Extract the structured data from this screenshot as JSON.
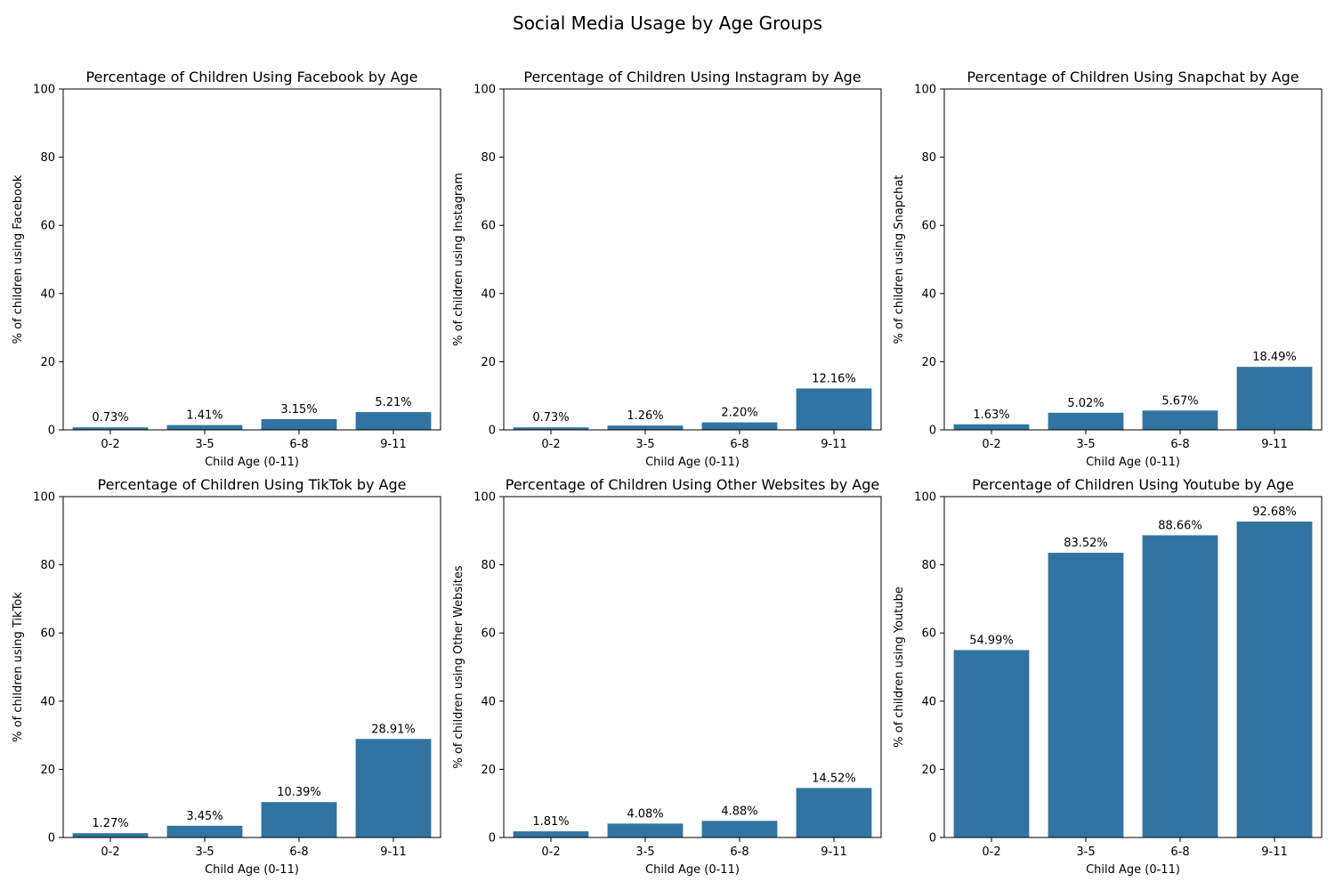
{
  "figure": {
    "title": "Social Media Usage by Age Groups"
  },
  "colors": {
    "bar": "#3274a1",
    "axis": "#000000",
    "text": "#000000",
    "background": "#ffffff"
  },
  "chart_data": [
    {
      "type": "bar",
      "title": "Percentage of Children Using Facebook by Age",
      "xlabel": "Child Age (0-11)",
      "ylabel": "% of children using Facebook",
      "categories": [
        "0-2",
        "3-5",
        "6-8",
        "9-11"
      ],
      "values": [
        0.73,
        1.41,
        3.15,
        5.21
      ],
      "data_labels": [
        "0.73%",
        "1.41%",
        "3.15%",
        "5.21%"
      ],
      "ylim": [
        0,
        100
      ],
      "yticks": [
        0,
        20,
        40,
        60,
        80,
        100
      ],
      "grid": false,
      "legend": "none"
    },
    {
      "type": "bar",
      "title": "Percentage of Children Using Instagram by Age",
      "xlabel": "Child Age (0-11)",
      "ylabel": "% of children using Instagram",
      "categories": [
        "0-2",
        "3-5",
        "6-8",
        "9-11"
      ],
      "values": [
        0.73,
        1.26,
        2.2,
        12.16
      ],
      "data_labels": [
        "0.73%",
        "1.26%",
        "2.20%",
        "12.16%"
      ],
      "ylim": [
        0,
        100
      ],
      "yticks": [
        0,
        20,
        40,
        60,
        80,
        100
      ],
      "grid": false,
      "legend": "none"
    },
    {
      "type": "bar",
      "title": "Percentage of Children Using Snapchat by Age",
      "xlabel": "Child Age (0-11)",
      "ylabel": "% of children using Snapchat",
      "categories": [
        "0-2",
        "3-5",
        "6-8",
        "9-11"
      ],
      "values": [
        1.63,
        5.02,
        5.67,
        18.49
      ],
      "data_labels": [
        "1.63%",
        "5.02%",
        "5.67%",
        "18.49%"
      ],
      "ylim": [
        0,
        100
      ],
      "yticks": [
        0,
        20,
        40,
        60,
        80,
        100
      ],
      "grid": false,
      "legend": "none"
    },
    {
      "type": "bar",
      "title": "Percentage of Children Using TikTok by Age",
      "xlabel": "Child Age (0-11)",
      "ylabel": "% of children using TikTok",
      "categories": [
        "0-2",
        "3-5",
        "6-8",
        "9-11"
      ],
      "values": [
        1.27,
        3.45,
        10.39,
        28.91
      ],
      "data_labels": [
        "1.27%",
        "3.45%",
        "10.39%",
        "28.91%"
      ],
      "ylim": [
        0,
        100
      ],
      "yticks": [
        0,
        20,
        40,
        60,
        80,
        100
      ],
      "grid": false,
      "legend": "none"
    },
    {
      "type": "bar",
      "title": "Percentage of Children Using Other Websites by Age",
      "xlabel": "Child Age (0-11)",
      "ylabel": "% of children using Other Websites",
      "categories": [
        "0-2",
        "3-5",
        "6-8",
        "9-11"
      ],
      "values": [
        1.81,
        4.08,
        4.88,
        14.52
      ],
      "data_labels": [
        "1.81%",
        "4.08%",
        "4.88%",
        "14.52%"
      ],
      "ylim": [
        0,
        100
      ],
      "yticks": [
        0,
        20,
        40,
        60,
        80,
        100
      ],
      "grid": false,
      "legend": "none"
    },
    {
      "type": "bar",
      "title": "Percentage of Children Using Youtube by Age",
      "xlabel": "Child Age (0-11)",
      "ylabel": "% of children using Youtube",
      "categories": [
        "0-2",
        "3-5",
        "6-8",
        "9-11"
      ],
      "values": [
        54.99,
        83.52,
        88.66,
        92.68
      ],
      "data_labels": [
        "54.99%",
        "83.52%",
        "88.66%",
        "92.68%"
      ],
      "ylim": [
        0,
        100
      ],
      "yticks": [
        0,
        20,
        40,
        60,
        80,
        100
      ],
      "grid": false,
      "legend": "none"
    }
  ]
}
